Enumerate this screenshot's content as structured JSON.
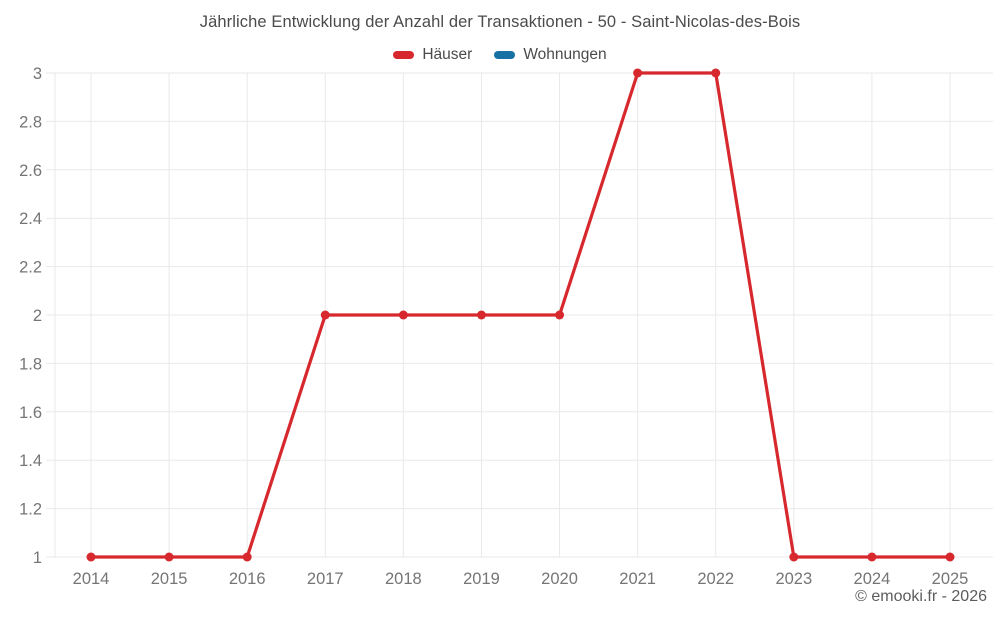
{
  "title": "Jährliche Entwicklung der Anzahl der Transaktionen - 50 - Saint-Nicolas-des-Bois",
  "legend": {
    "items": [
      {
        "label": "Häuser",
        "color": "#d6282d"
      },
      {
        "label": "Wohnungen",
        "color": "#1871a3"
      }
    ]
  },
  "copyright": "© emooki.fr - 2026",
  "chart_data": {
    "type": "line",
    "x": [
      2014,
      2015,
      2016,
      2017,
      2018,
      2019,
      2020,
      2021,
      2022,
      2023,
      2024,
      2025
    ],
    "series": [
      {
        "name": "Häuser",
        "color": "#d6282d",
        "values": [
          1,
          1,
          1,
          2,
          2,
          2,
          2,
          3,
          3,
          1,
          1,
          1
        ]
      },
      {
        "name": "Wohnungen",
        "color": "#1871a3",
        "values": []
      }
    ],
    "title": "Jährliche Entwicklung der Anzahl der Transaktionen - 50 - Saint-Nicolas-des-Bois",
    "xlabel": "",
    "ylabel": "",
    "ylim": [
      1,
      3
    ],
    "ytick_step": 0.2,
    "yticks": [
      "1",
      "1.2",
      "1.4",
      "1.6",
      "1.8",
      "2",
      "2.2",
      "2.4",
      "2.6",
      "2.8",
      "3"
    ],
    "grid": true,
    "legend_position": "top"
  }
}
